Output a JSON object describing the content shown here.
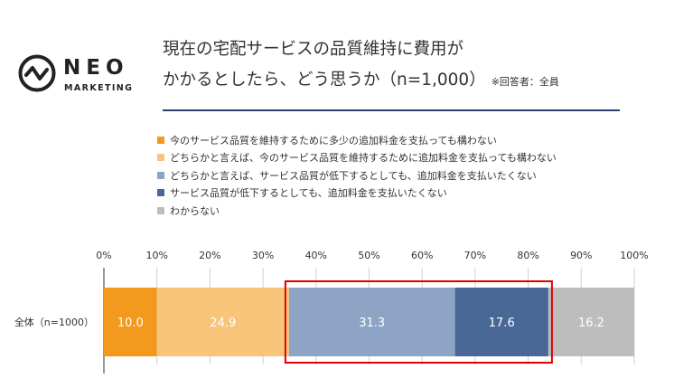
{
  "brand": {
    "name": "NEO",
    "sub": "MARKETING"
  },
  "colors": {
    "brand_ink": "#222222",
    "title_rule": "#2e3f6e",
    "highlight": "#e00000"
  },
  "icons": {
    "logo": "neo-wave-circle-icon"
  },
  "title": {
    "line1": "現在の宅配サービスの品質維持に費用が",
    "line2": "かかるとしたら、どう思うか（n=1,000）",
    "note": "※回答者：全員"
  },
  "chart_data": {
    "type": "bar",
    "orientation": "horizontal",
    "stacked": true,
    "stack_mode": "percent",
    "categories": [
      "全体（n=1000）"
    ],
    "xlim": [
      0,
      100
    ],
    "xticks": [
      0,
      10,
      20,
      30,
      40,
      50,
      60,
      70,
      80,
      90,
      100
    ],
    "xtick_labels": [
      "0%",
      "10%",
      "20%",
      "30%",
      "40%",
      "50%",
      "60%",
      "70%",
      "80%",
      "90%",
      "100%"
    ],
    "grid": true,
    "legend_position": "top",
    "series": [
      {
        "name": "今のサービス品質を維持するために多少の追加料金を支払っても構わない",
        "values": [
          10.0
        ],
        "label": "10.0",
        "color": "#f39a1e"
      },
      {
        "name": "どちらかと言えば、今のサービス品質を維持するために追加料金を支払っても構わない",
        "values": [
          24.9
        ],
        "label": "24.9",
        "color": "#f8c57a"
      },
      {
        "name": "どちらかと言えば、サービス品質が低下するとしても、追加料金を支払いたくない",
        "values": [
          31.3
        ],
        "label": "31.3",
        "color": "#8ea4c4"
      },
      {
        "name": "サービス品質が低下するとしても、追加料金を支払いたくない",
        "values": [
          17.6
        ],
        "label": "17.6",
        "color": "#4a6896"
      },
      {
        "name": "わからない",
        "values": [
          16.2
        ],
        "label": "16.2",
        "color": "#bdbdbd"
      }
    ],
    "highlight": {
      "series": [
        2,
        3
      ],
      "color": "#e00000"
    }
  }
}
